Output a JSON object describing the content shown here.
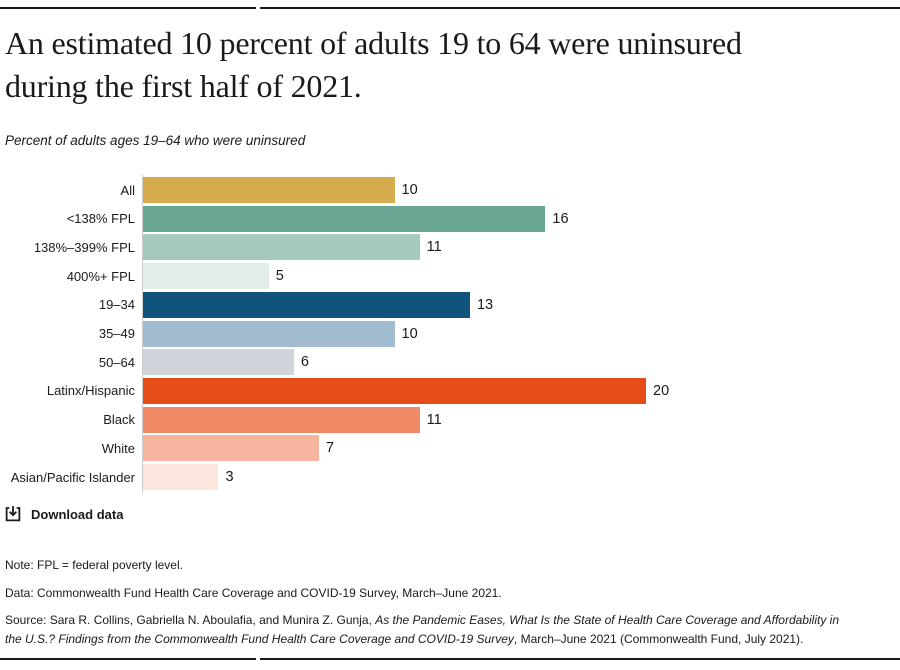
{
  "header": {
    "title_line1": "An estimated 10 percent of adults 19 to 64 were uninsured",
    "title_line2": "during the first half of 2021.",
    "subtitle": "Percent of adults ages 19–64 who were uninsured"
  },
  "chart_data": {
    "type": "bar",
    "orientation": "horizontal",
    "title": "An estimated 10 percent of adults 19 to 64 were uninsured during the first half of 2021.",
    "subtitle": "Percent of adults ages 19–64 who were uninsured",
    "unit": "percent of adults ages 19–64",
    "xlim": [
      0,
      20
    ],
    "grid": false,
    "legend": false,
    "value_labels": true,
    "categories": [
      "All",
      "<138% FPL",
      "138%–399% FPL",
      "400%+ FPL",
      "19–34",
      "35–49",
      "50–64",
      "Latinx/Hispanic",
      "Black",
      "White",
      "Asian/Pacific Islander"
    ],
    "values": [
      10,
      16,
      11,
      5,
      13,
      10,
      6,
      20,
      11,
      7,
      3
    ],
    "colors": [
      "#d5ab4d",
      "#69a593",
      "#a6c9bb",
      "#e2ede9",
      "#11547b",
      "#a0bcce",
      "#d0d5db",
      "#e54d18",
      "#f08a66",
      "#f7b49e",
      "#fbe5dd"
    ]
  },
  "toolbar": {
    "download_label": "Download data",
    "download_icon": "download-tray-icon"
  },
  "footnotes": {
    "note": "Note: FPL = federal poverty level.",
    "data": "Data: Commonwealth Fund Health Care Coverage and COVID-19 Survey, March–June 2021.",
    "source_prefix": "Source: Sara R. Collins, Gabriella N. Aboulafia, and Munira Z. Gunja, ",
    "source_italic": "As the Pandemic Eases, What Is the State of Health Care Coverage and Affordability in the U.S.? Findings from the Commonwealth Fund Health Care Coverage and COVID-19 Survey",
    "source_suffix": ", March–June 2021 (Commonwealth Fund, July 2021)."
  }
}
